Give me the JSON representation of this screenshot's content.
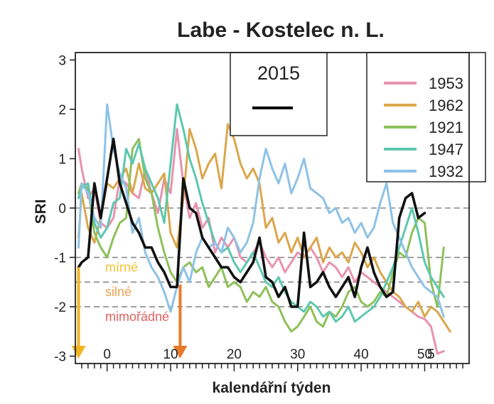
{
  "chart_data": {
    "type": "line",
    "title": "Labe - Kostelec n. L.",
    "xlabel": "kalendářní týden",
    "ylabel": "SRI",
    "xlim": [
      -5,
      57
    ],
    "ylim": [
      -3.15,
      3.15
    ],
    "x_ticks": [
      0,
      10,
      20,
      30,
      40,
      50
    ],
    "x_tick_labels": [
      "0",
      "10",
      "20",
      "30",
      "40",
      "50"
    ],
    "extra_x_label": {
      "x": 51,
      "text": "5"
    },
    "y_ticks": [
      -3,
      -2,
      -1,
      0,
      1,
      2,
      3
    ],
    "y_tick_labels": [
      "-3",
      "-2",
      "-1",
      "0",
      "1",
      "2",
      "3"
    ],
    "reference_lines": [
      {
        "y": 0,
        "style": "dashed"
      },
      {
        "y": -1,
        "style": "dashed"
      },
      {
        "y": -1.5,
        "style": "dashed"
      },
      {
        "y": -2,
        "style": "dashed"
      }
    ],
    "categories": [
      {
        "text": "mírné",
        "color": "#f2c230",
        "y": -1.2
      },
      {
        "text": "silné",
        "color": "#f0a050",
        "y": -1.7
      },
      {
        "text": "mimořádné",
        "color": "#e06060",
        "y": -2.2
      }
    ],
    "arrows": [
      {
        "x": -4.5,
        "y_from": -1.2,
        "y_to": -3.05,
        "color": "#f2b420"
      },
      {
        "x": 11.5,
        "y_from": -1.55,
        "y_to": -3.05,
        "color": "#e87a2a"
      }
    ],
    "inset_label": {
      "text": "2015",
      "color": "#000000"
    },
    "series": [
      {
        "name": "1953",
        "color": "#e892ae",
        "x": [
          -4.5,
          -4,
          -3,
          -2,
          -1,
          0,
          1,
          2,
          3,
          4,
          5,
          6,
          7,
          8,
          9,
          10,
          11,
          12,
          13,
          14,
          15,
          16,
          17,
          18,
          19,
          20,
          21,
          22,
          23,
          24,
          25,
          26,
          27,
          28,
          29,
          30,
          31,
          32,
          33,
          34,
          35,
          36,
          37,
          38,
          39,
          40,
          41,
          42,
          43,
          44,
          45,
          46,
          47,
          48,
          49,
          50,
          51,
          52,
          53
        ],
        "y": [
          1.2,
          0.8,
          0.2,
          0.4,
          -0.3,
          -0.4,
          -0.2,
          0.6,
          0.5,
          0.3,
          0.2,
          0.8,
          0.3,
          -0.1,
          0.6,
          0.3,
          1.6,
          0.5,
          -0.2,
          0.1,
          -0.4,
          -0.2,
          -0.9,
          -0.6,
          -0.8,
          -0.6,
          -1.0,
          -1.1,
          -0.9,
          -0.7,
          -1.0,
          -1.2,
          -1.0,
          -1.3,
          -1.1,
          -0.9,
          -1.0,
          -0.8,
          -1.0,
          -1.3,
          -1.1,
          -1.2,
          -1.4,
          -1.2,
          -1.5,
          -1.3,
          -1.4,
          -1.5,
          -1.6,
          -1.7,
          -1.8,
          -1.9,
          -2.0,
          -2.1,
          -2.2,
          -2.25,
          -2.4,
          -2.95,
          -2.9
        ]
      },
      {
        "name": "1962",
        "color": "#dba64c",
        "x": [
          -4.5,
          -4,
          -3,
          -2,
          -1,
          0,
          1,
          2,
          3,
          4,
          5,
          6,
          7,
          8,
          9,
          10,
          11,
          12,
          13,
          14,
          15,
          16,
          17,
          18,
          19,
          20,
          21,
          22,
          23,
          24,
          25,
          26,
          27,
          28,
          29,
          30,
          31,
          32,
          33,
          34,
          35,
          36,
          37,
          38,
          39,
          40,
          41,
          42,
          43,
          44,
          45,
          46,
          47,
          48,
          49,
          50,
          51,
          52,
          53,
          54
        ],
        "y": [
          -0.6,
          0.3,
          -0.4,
          -0.7,
          -0.2,
          0.5,
          0.4,
          0.6,
          0.8,
          0.3,
          0.9,
          0.4,
          0.3,
          0.5,
          0.7,
          -0.5,
          -0.8,
          0.2,
          1.6,
          1.2,
          0.6,
          0.9,
          1.1,
          0.4,
          1.7,
          1.4,
          0.9,
          0.6,
          0.8,
          0.5,
          -0.4,
          -0.2,
          -0.7,
          -0.5,
          -0.9,
          -0.6,
          -1.0,
          -0.8,
          -0.6,
          -1.1,
          -0.8,
          -1.0,
          -0.9,
          -1.1,
          -0.7,
          -0.9,
          -1.2,
          -1.0,
          -1.3,
          -1.5,
          -1.7,
          -1.8,
          -2.0,
          -2.1,
          -1.9,
          -2.2,
          -2.0,
          -2.1,
          -2.3,
          -2.5
        ]
      },
      {
        "name": "1921",
        "color": "#8ec05a",
        "x": [
          -4.5,
          -4,
          -3,
          -2,
          -1,
          0,
          1,
          2,
          3,
          4,
          5,
          6,
          7,
          8,
          9,
          10,
          11,
          12,
          13,
          14,
          15,
          16,
          17,
          18,
          19,
          20,
          21,
          22,
          23,
          24,
          25,
          26,
          27,
          28,
          29,
          30,
          31,
          32,
          33,
          34,
          35,
          36,
          37,
          38,
          39,
          40,
          41,
          42,
          43,
          44,
          45,
          46,
          47,
          48,
          49,
          50,
          51,
          52,
          53
        ],
        "y": [
          0.3,
          0.5,
          0.4,
          -0.5,
          -0.8,
          -1.0,
          -0.6,
          -0.3,
          -0.2,
          1.2,
          1.4,
          0.6,
          0.3,
          -0.4,
          -0.9,
          -1.3,
          -1.5,
          -1.2,
          -1.1,
          -1.3,
          -1.2,
          -1.6,
          -1.4,
          -1.2,
          -1.6,
          -1.5,
          -1.6,
          -1.9,
          -1.7,
          -1.8,
          -1.6,
          -1.9,
          -2.0,
          -2.3,
          -2.5,
          -2.4,
          -2.2,
          -2.0,
          -2.3,
          -2.4,
          -2.1,
          -2.2,
          -2.0,
          -1.7,
          -1.6,
          -1.9,
          -2.0,
          -1.9,
          -1.7,
          -1.8,
          -1.3,
          -0.9,
          -1.0,
          -0.5,
          -0.2,
          -0.3,
          -1.5,
          -2.0,
          -0.8
        ]
      },
      {
        "name": "1947",
        "color": "#5cc8ae",
        "x": [
          -4.5,
          -4,
          -3,
          -2,
          -1,
          0,
          1,
          2,
          3,
          4,
          5,
          6,
          7,
          8,
          9,
          10,
          11,
          12,
          13,
          14,
          15,
          16,
          17,
          18,
          19,
          20,
          21,
          22,
          23,
          24,
          25,
          26,
          27,
          28,
          29,
          30,
          31,
          32,
          33,
          34,
          35,
          36,
          37,
          38,
          39,
          40,
          41,
          42,
          43,
          44,
          45,
          46,
          47,
          48,
          49,
          50,
          51,
          52,
          53
        ],
        "y": [
          0.2,
          0.4,
          0.5,
          -0.3,
          -0.6,
          -0.4,
          0.1,
          0.2,
          1.2,
          0.9,
          1.3,
          0.8,
          0.5,
          0.2,
          -0.3,
          0.9,
          2.1,
          1.6,
          1.0,
          0.6,
          0.1,
          -0.3,
          -0.7,
          -0.9,
          -0.8,
          -1.1,
          -1.3,
          -1.1,
          -0.9,
          -1.2,
          -1.5,
          -1.6,
          -1.4,
          -1.7,
          -1.9,
          -2.0,
          -2.1,
          -1.9,
          -2.0,
          -2.2,
          -2.1,
          -2.3,
          -2.2,
          -2.0,
          -2.3,
          -2.2,
          -2.1,
          -2.0,
          -1.8,
          -1.5,
          -1.2,
          -0.8,
          -0.4,
          0.0,
          -0.5,
          -1.1,
          -1.4,
          -1.6,
          -1.8
        ]
      },
      {
        "name": "1932",
        "color": "#8ec2e6",
        "x": [
          -4.5,
          -4,
          -3,
          -2,
          -1,
          0,
          1,
          2,
          3,
          4,
          5,
          6,
          7,
          8,
          9,
          10,
          11,
          12,
          13,
          14,
          15,
          16,
          17,
          18,
          19,
          20,
          21,
          22,
          23,
          24,
          25,
          26,
          27,
          28,
          29,
          30,
          31,
          32,
          33,
          34,
          35,
          36,
          37,
          38,
          39,
          40,
          41,
          42,
          43,
          44,
          45,
          46,
          47,
          48,
          49,
          50,
          51,
          52,
          53
        ],
        "y": [
          -0.8,
          0.5,
          0.3,
          -0.2,
          -0.4,
          2.1,
          1.2,
          0.7,
          0.4,
          -0.5,
          -0.2,
          -0.9,
          -1.2,
          -1.4,
          -1.7,
          -2.1,
          -1.6,
          -1.2,
          -1.5,
          -0.9,
          -0.6,
          -0.8,
          -0.7,
          -0.9,
          -0.4,
          -0.6,
          -0.9,
          -0.7,
          -0.3,
          0.6,
          1.2,
          0.8,
          0.5,
          0.9,
          0.3,
          0.6,
          1.0,
          0.4,
          0.3,
          0.2,
          -0.1,
          0.0,
          -0.3,
          -0.2,
          -0.5,
          -0.3,
          -0.6,
          -0.4,
          0.1,
          0.5,
          -0.3,
          -0.6,
          -0.9,
          -1.2,
          -1.4,
          -1.6,
          -1.7,
          -1.8,
          -2.2
        ]
      },
      {
        "name": "2015",
        "color": "#111111",
        "in_legend": false,
        "x": [
          -4.5,
          -4,
          -3,
          -2,
          -1,
          0,
          1,
          2,
          3,
          4,
          5,
          6,
          7,
          8,
          9,
          10,
          11,
          12,
          13,
          14,
          15,
          16,
          17,
          18,
          19,
          20,
          21,
          22,
          23,
          24,
          25,
          26,
          27,
          28,
          29,
          30,
          31,
          32,
          33,
          34,
          35,
          36,
          37,
          38,
          39,
          40,
          41,
          42,
          43,
          44,
          45,
          46,
          47,
          48,
          49,
          50
        ],
        "y": [
          -1.2,
          -1.1,
          -1.0,
          0.5,
          -0.2,
          0.6,
          1.4,
          0.5,
          0.1,
          -0.3,
          -0.5,
          -0.8,
          -0.8,
          -1.1,
          -1.3,
          -1.6,
          -1.6,
          0.6,
          0.0,
          -0.1,
          -0.6,
          -0.8,
          -1.0,
          -1.2,
          -1.2,
          -1.4,
          -1.5,
          -1.3,
          -1.1,
          -0.6,
          -1.4,
          -1.5,
          -1.8,
          -1.6,
          -2.0,
          -2.0,
          -0.5,
          -1.6,
          -1.5,
          -1.3,
          -1.6,
          -1.8,
          -1.6,
          -1.4,
          -1.8,
          -1.2,
          -0.8,
          -1.3,
          -1.6,
          -1.8,
          -1.7,
          -0.2,
          0.2,
          0.3,
          -0.2,
          -0.1
        ]
      }
    ]
  }
}
